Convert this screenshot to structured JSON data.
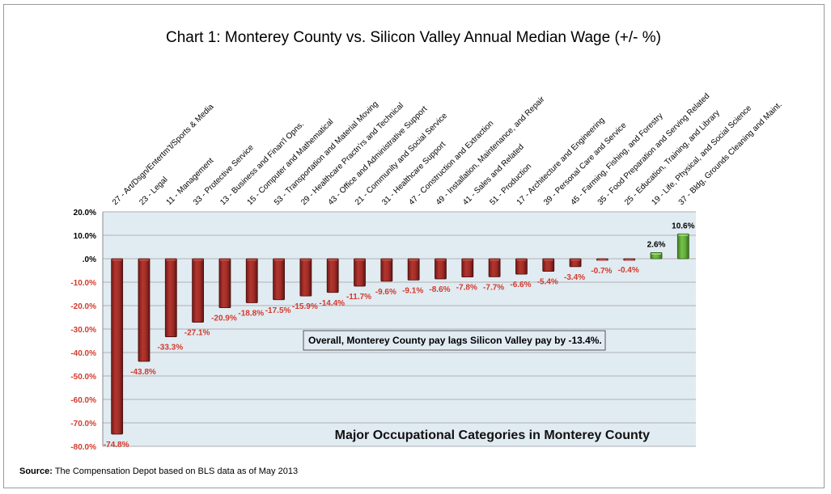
{
  "source": {
    "label": "Source:",
    "text": "The Compensation Depot based on BLS data as of May 2013"
  },
  "colors": {
    "negative_bar": "#9e2a24",
    "positive_bar": "#5fa83b",
    "negative_text": "#d23a2c",
    "plot_background": "#e1ebf2",
    "gridline": "#b9bcbf"
  },
  "chart_data": {
    "type": "bar",
    "title": "Chart 1: Monterey County vs. Silicon Valley Annual Median Wage (+/- %)",
    "xlabel": "Major Occupational Categories in Monterey County",
    "ylabel": "",
    "ylim": [
      -80,
      20
    ],
    "yticks": [
      20,
      10,
      0,
      -10,
      -20,
      -30,
      -40,
      -50,
      -60,
      -70,
      -80
    ],
    "ytick_labels": [
      "20.0%",
      "10.0%",
      ".0%",
      "-10.0%",
      "-20.0%",
      "-30.0%",
      "-40.0%",
      "-50.0%",
      "-60.0%",
      "-70.0%",
      "-80.0%"
    ],
    "grid": true,
    "legend": "none",
    "annotation": "Overall, Monterey County pay lags Silicon Valley pay by -13.4%.",
    "categories": [
      "27 - Art/Dsgn/Entertm't/Sports & Media",
      "23 - Legal",
      "11 - Management",
      "33 - Protective Service",
      "13 - Business and Finan'l Opns.",
      "15 - Computer and Mathematical",
      "53 - Transportation and Material Moving",
      "29 - Healthcare Practn'rs and Technical",
      "43 - Office and Administrative Support",
      "21 - Community and Social Service",
      "31 - Healthcare Support",
      "47 - Construction and Extraction",
      "49 - Installation, Maintenance, and Repair",
      "41 - Sales and Related",
      "51 - Production",
      "17 - Architecture and Engineering",
      "39 - Personal Care and Service",
      "45 - Farming, Fishing, and Forestry",
      "35 - Food Preparation and Serving Related",
      "25 - Education, Training, and Library",
      "19 - Life, Physical, and Social Science",
      "37 - Bldg, Grounds Cleaning and Maint."
    ],
    "values": [
      -74.8,
      -43.8,
      -33.3,
      -27.1,
      -20.9,
      -18.8,
      -17.5,
      -15.9,
      -14.4,
      -11.7,
      -9.6,
      -9.1,
      -8.6,
      -7.8,
      -7.7,
      -6.6,
      -5.4,
      -3.4,
      -0.7,
      -0.4,
      2.6,
      10.6
    ],
    "value_labels": [
      "-74.8%",
      "-43.8%",
      "-33.3%",
      "-27.1%",
      "-20.9%",
      "-18.8%",
      "-17.5%",
      "-15.9%",
      "-14.4%",
      "-11.7%",
      "-9.6%",
      "-9.1%",
      "-8.6%",
      "-7.8%",
      "-7.7%",
      "-6.6%",
      "-5.4%",
      "-3.4%",
      "-0.7%",
      "-0.4%",
      "2.6%",
      "10.6%"
    ]
  }
}
